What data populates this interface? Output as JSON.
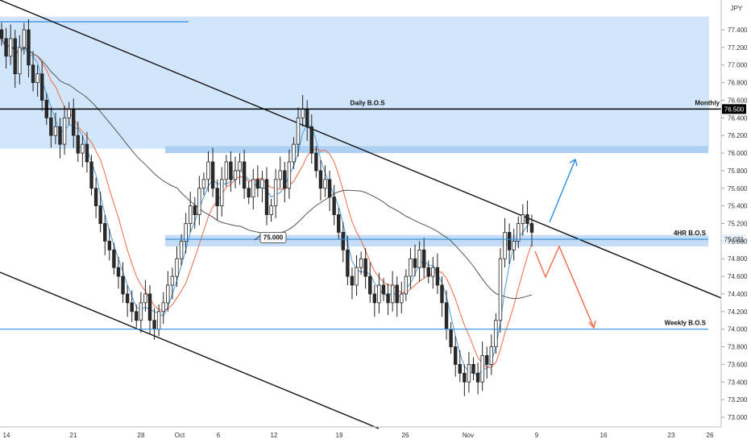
{
  "chart_data": {
    "type": "candlestick",
    "currency_label": "JPY",
    "ylim": [
      72.9,
      77.6
    ],
    "y_ticks": [
      "77.400",
      "77.200",
      "77.000",
      "76.800",
      "76.600",
      "76.400",
      "76.200",
      "76.000",
      "75.800",
      "75.600",
      "75.400",
      "75.200",
      "75.000",
      "74.800",
      "74.600",
      "74.400",
      "74.200",
      "74.000",
      "73.800",
      "73.600",
      "73.400",
      "73.200",
      "73.000"
    ],
    "x_ticks": [
      "14",
      "21",
      "28",
      "Oct",
      "6",
      "12",
      "19",
      "26",
      "Nov",
      "9",
      "16",
      "23",
      "26"
    ],
    "price_badges": {
      "monthly": "76.500",
      "four_hr": "75.021"
    },
    "levels": {
      "monthly": {
        "value": 76.5,
        "label": "Monthly"
      },
      "daily": {
        "value": 76.5,
        "label": "Daily B.O.S"
      },
      "four_hr": {
        "value": 75.021,
        "label": "4HR B.O.S"
      },
      "weekly": {
        "value": 74.0,
        "label": "Weekly B.O.S"
      }
    },
    "callout": {
      "text": "75.000",
      "value": 75.0
    },
    "zones": [
      {
        "name": "supply-zone",
        "from": 76.05,
        "to": 77.55
      },
      {
        "name": "daily-zone",
        "from": 76.0,
        "to": 76.08
      },
      {
        "name": "4hr-zone",
        "from": 74.94,
        "to": 75.07
      }
    ],
    "closes": [
      77.3,
      77.1,
      77.3,
      76.9,
      77.2,
      77.4,
      77.0,
      76.8,
      76.9,
      76.6,
      76.4,
      76.2,
      76.3,
      76.1,
      76.4,
      76.5,
      76.2,
      76.0,
      76.1,
      75.9,
      75.6,
      75.4,
      75.2,
      75.0,
      74.9,
      74.7,
      74.6,
      74.4,
      74.3,
      74.2,
      74.1,
      74.3,
      74.4,
      74.1,
      74.0,
      74.2,
      74.3,
      74.5,
      74.6,
      74.8,
      75.0,
      75.2,
      75.4,
      75.3,
      75.6,
      75.7,
      75.9,
      75.6,
      75.4,
      75.7,
      75.9,
      75.7,
      75.8,
      75.9,
      75.6,
      75.5,
      75.7,
      75.6,
      75.7,
      75.3,
      75.4,
      75.7,
      75.8,
      75.6,
      75.9,
      76.1,
      76.4,
      76.5,
      76.3,
      76.0,
      75.8,
      75.6,
      75.7,
      75.5,
      75.3,
      75.1,
      74.9,
      74.6,
      74.5,
      74.7,
      74.8,
      74.6,
      74.4,
      74.3,
      74.5,
      74.4,
      74.3,
      74.5,
      74.3,
      74.4,
      74.6,
      74.8,
      74.7,
      74.9,
      74.7,
      74.6,
      74.7,
      74.5,
      74.3,
      74.0,
      73.8,
      73.6,
      73.5,
      73.4,
      73.6,
      73.5,
      73.4,
      73.7,
      73.6,
      73.8,
      74.1,
      74.8,
      75.1,
      74.9,
      75.0,
      75.2,
      75.3,
      75.2,
      75.1
    ]
  }
}
